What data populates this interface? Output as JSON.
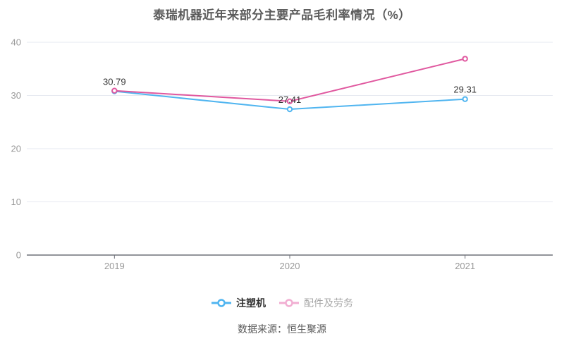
{
  "page": {
    "title": "泰瑞机器近年来部分主要产品毛利率情况（%）",
    "source": "数据来源：恒生聚源"
  },
  "chart_data": {
    "type": "line",
    "title": "泰瑞机器近年来部分主要产品毛利率情况（%）",
    "categories": [
      "2019",
      "2020",
      "2021"
    ],
    "series": [
      {
        "name": "注塑机",
        "values": [
          30.79,
          27.41,
          29.31
        ],
        "labels": [
          "30.79",
          "27.41",
          "29.31"
        ],
        "color": "#50b5f0"
      },
      {
        "name": "配件及劳务",
        "values": [
          30.9,
          28.9,
          36.9
        ],
        "labels": [],
        "color": "#e0589f"
      }
    ],
    "ylabel": "",
    "xlabel": "",
    "ylim": [
      0,
      40
    ],
    "y_ticks": [
      0,
      10,
      20,
      30,
      40
    ],
    "grid": true,
    "legend_position": "bottom"
  },
  "legend": {
    "items": [
      {
        "label": "注塑机",
        "icon_color": "#50b5f0",
        "icon": "line-circle-icon"
      },
      {
        "label": "配件及劳务",
        "icon_color": "#f1aed2",
        "icon": "line-circle-icon"
      }
    ]
  },
  "footer": {
    "source": "数据来源：恒生聚源"
  },
  "colors": {
    "background": "#ffffff",
    "title_text": "#5c5c5c",
    "gridline": "#e6e9f0",
    "axis_line": "#6e7079",
    "axis_tick_label": "#999999",
    "data_label": "#333333",
    "series_blue": "#50b5f0",
    "series_pink": "#e0589f",
    "legend_pink_icon": "#f1aed2",
    "legend_gray_text": "#a8a8a8"
  }
}
